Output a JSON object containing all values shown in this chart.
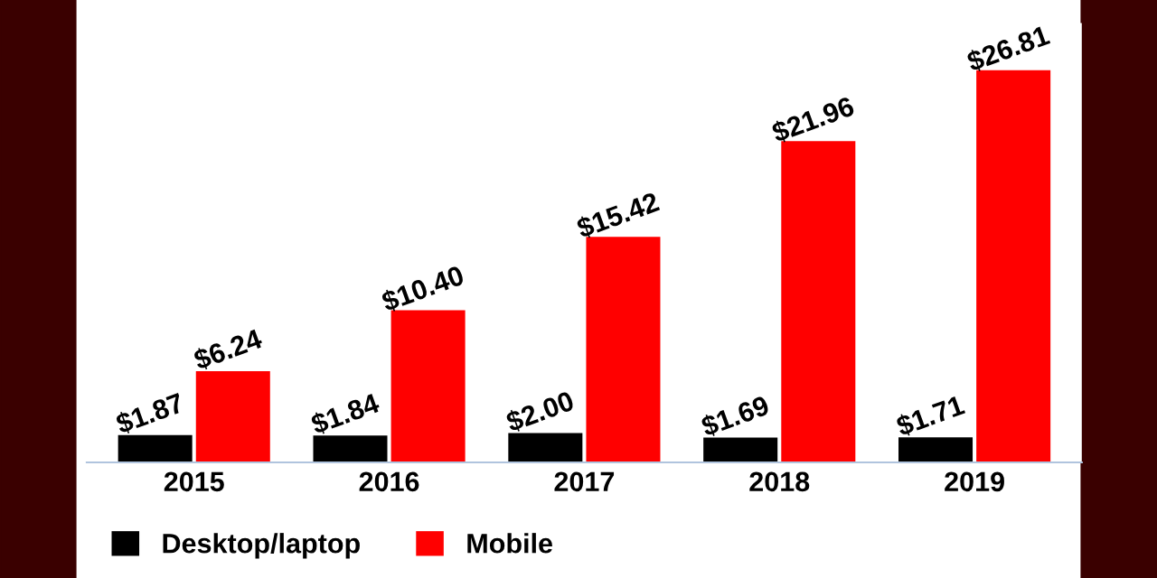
{
  "chart_data": {
    "type": "bar",
    "categories": [
      "2015",
      "2016",
      "2017",
      "2018",
      "2019"
    ],
    "series": [
      {
        "name": "Desktop/laptop",
        "color": "#000000",
        "values": [
          1.87,
          1.84,
          2.0,
          1.69,
          1.71
        ],
        "value_labels": [
          "$1.87",
          "$1.84",
          "$2.00",
          "$1.69",
          "$1.71"
        ]
      },
      {
        "name": "Mobile",
        "color": "#ff0000",
        "values": [
          6.24,
          10.4,
          15.42,
          21.96,
          26.81
        ],
        "value_labels": [
          "$6.24",
          "$10.40",
          "$15.42",
          "$21.96",
          "$26.81"
        ]
      }
    ],
    "legend": "bottom left",
    "grid": false
  }
}
